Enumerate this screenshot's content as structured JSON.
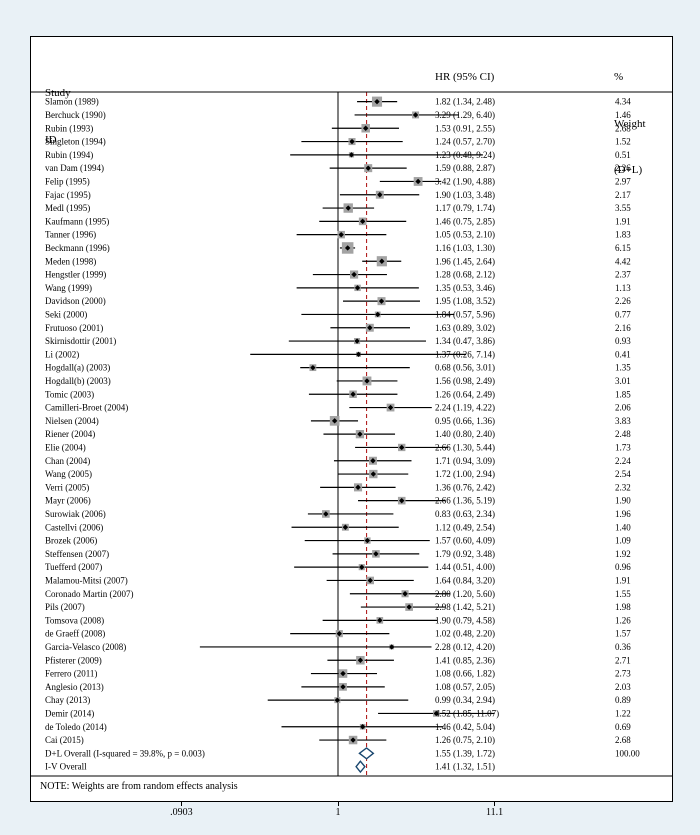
{
  "figure": {
    "header": {
      "col1_line1": "Study",
      "col1_line2": "ID",
      "col2": "HR (95% CI)",
      "col3_line1": "%",
      "col3_line2": "Weight",
      "col3_line3": "(D+L)"
    },
    "note": "NOTE: Weights are from random effects analysis",
    "axis": {
      "ticks": [
        {
          "label": ".0903",
          "value": 0.0903
        },
        {
          "label": "1",
          "value": 1
        },
        {
          "label": "11.1",
          "value": 11.07
        }
      ]
    }
  },
  "colors": {
    "background": "#e9f1f6",
    "plot_background": "#ffffff",
    "box": "#a3a3a3",
    "marker": "#000000",
    "diamond": "#1a476f",
    "pooled_line": "#b22222",
    "line": "#000000"
  },
  "chart_data": {
    "type": "forest",
    "effect_measure": "HR",
    "x_scale": "log",
    "xlim": [
      0.0903,
      11.07
    ],
    "null_line": 1,
    "pooled_estimate": 1.55,
    "studies": [
      {
        "id": "Slamon (1989)",
        "hr": 1.82,
        "lo": 1.34,
        "hi": 2.48,
        "w": 4.34
      },
      {
        "id": "Berchuck (1990)",
        "hr": 3.29,
        "lo": 1.29,
        "hi": 6.4,
        "w": 1.46
      },
      {
        "id": "Rubin (1993)",
        "hr": 1.53,
        "lo": 0.91,
        "hi": 2.55,
        "w": 2.68
      },
      {
        "id": "Singleton (1994)",
        "hr": 1.24,
        "lo": 0.57,
        "hi": 2.7,
        "w": 1.52
      },
      {
        "id": "Rubin (1994)",
        "hr": 1.23,
        "lo": 0.48,
        "hi": 9.24,
        "w": 0.51
      },
      {
        "id": "van Dam (1994)",
        "hr": 1.59,
        "lo": 0.88,
        "hi": 2.87,
        "w": 2.26
      },
      {
        "id": "Felip (1995)",
        "hr": 3.42,
        "lo": 1.9,
        "hi": 4.88,
        "w": 2.97
      },
      {
        "id": "Fajac (1995)",
        "hr": 1.9,
        "lo": 1.03,
        "hi": 3.48,
        "w": 2.17
      },
      {
        "id": "Medl (1995)",
        "hr": 1.17,
        "lo": 0.79,
        "hi": 1.74,
        "w": 3.55
      },
      {
        "id": "Kaufmann (1995)",
        "hr": 1.46,
        "lo": 0.75,
        "hi": 2.85,
        "w": 1.91
      },
      {
        "id": "Tanner (1996)",
        "hr": 1.05,
        "lo": 0.53,
        "hi": 2.1,
        "w": 1.83
      },
      {
        "id": "Beckmann (1996)",
        "hr": 1.16,
        "lo": 1.03,
        "hi": 1.3,
        "w": 6.15
      },
      {
        "id": "Meden (1998)",
        "hr": 1.96,
        "lo": 1.45,
        "hi": 2.64,
        "w": 4.42
      },
      {
        "id": "Hengstler (1999)",
        "hr": 1.28,
        "lo": 0.68,
        "hi": 2.12,
        "w": 2.37
      },
      {
        "id": "Wang (1999)",
        "hr": 1.35,
        "lo": 0.53,
        "hi": 3.46,
        "w": 1.13
      },
      {
        "id": "Davidson (2000)",
        "hr": 1.95,
        "lo": 1.08,
        "hi": 3.52,
        "w": 2.26
      },
      {
        "id": "Seki (2000)",
        "hr": 1.84,
        "lo": 0.57,
        "hi": 5.96,
        "w": 0.77
      },
      {
        "id": "Frutuoso (2001)",
        "hr": 1.63,
        "lo": 0.89,
        "hi": 3.02,
        "w": 2.16
      },
      {
        "id": "Skirnisdottir (2001)",
        "hr": 1.34,
        "lo": 0.47,
        "hi": 3.86,
        "w": 0.93
      },
      {
        "id": "Li (2002)",
        "hr": 1.37,
        "lo": 0.26,
        "hi": 7.14,
        "w": 0.41
      },
      {
        "id": "Hogdall(a) (2003)",
        "hr": 0.68,
        "lo": 0.56,
        "hi": 3.01,
        "w": 1.35
      },
      {
        "id": "Hogdall(b) (2003)",
        "hr": 1.56,
        "lo": 0.98,
        "hi": 2.49,
        "w": 3.01
      },
      {
        "id": "Tomic (2003)",
        "hr": 1.26,
        "lo": 0.64,
        "hi": 2.49,
        "w": 1.85
      },
      {
        "id": "Camilleri-Broet (2004)",
        "hr": 2.24,
        "lo": 1.19,
        "hi": 4.22,
        "w": 2.06
      },
      {
        "id": "Nielsen (2004)",
        "hr": 0.95,
        "lo": 0.66,
        "hi": 1.36,
        "w": 3.83
      },
      {
        "id": "Riener (2004)",
        "hr": 1.4,
        "lo": 0.8,
        "hi": 2.4,
        "w": 2.48
      },
      {
        "id": "Elie (2004)",
        "hr": 2.66,
        "lo": 1.3,
        "hi": 5.44,
        "w": 1.73
      },
      {
        "id": "Chan (2004)",
        "hr": 1.71,
        "lo": 0.94,
        "hi": 3.09,
        "w": 2.24
      },
      {
        "id": "Wang (2005)",
        "hr": 1.72,
        "lo": 1.0,
        "hi": 2.94,
        "w": 2.54
      },
      {
        "id": "Verri (2005)",
        "hr": 1.36,
        "lo": 0.76,
        "hi": 2.42,
        "w": 2.32
      },
      {
        "id": "Mayr (2006)",
        "hr": 2.66,
        "lo": 1.36,
        "hi": 5.19,
        "w": 1.9
      },
      {
        "id": "Surowiak (2006)",
        "hr": 0.83,
        "lo": 0.63,
        "hi": 2.34,
        "w": 1.96
      },
      {
        "id": "Castellvi (2006)",
        "hr": 1.12,
        "lo": 0.49,
        "hi": 2.54,
        "w": 1.4
      },
      {
        "id": "Brozek (2006)",
        "hr": 1.57,
        "lo": 0.6,
        "hi": 4.09,
        "w": 1.09
      },
      {
        "id": "Steffensen (2007)",
        "hr": 1.79,
        "lo": 0.92,
        "hi": 3.48,
        "w": 1.92
      },
      {
        "id": "Tuefferd (2007)",
        "hr": 1.44,
        "lo": 0.51,
        "hi": 4.0,
        "w": 0.96
      },
      {
        "id": "Malamou-Mitsi (2007)",
        "hr": 1.64,
        "lo": 0.84,
        "hi": 3.2,
        "w": 1.91
      },
      {
        "id": "Coronado Martin (2007)",
        "hr": 2.8,
        "lo": 1.2,
        "hi": 5.6,
        "w": 1.55
      },
      {
        "id": "Pils (2007)",
        "hr": 2.98,
        "lo": 1.42,
        "hi": 5.21,
        "w": 1.98
      },
      {
        "id": "Tomsova (2008)",
        "hr": 1.9,
        "lo": 0.79,
        "hi": 4.58,
        "w": 1.26
      },
      {
        "id": "de Graeff (2008)",
        "hr": 1.02,
        "lo": 0.48,
        "hi": 2.2,
        "w": 1.57
      },
      {
        "id": "Garcia-Velasco (2008)",
        "hr": 2.28,
        "lo": 0.12,
        "hi": 4.2,
        "w": 0.36
      },
      {
        "id": "Pfisterer (2009)",
        "hr": 1.41,
        "lo": 0.85,
        "hi": 2.36,
        "w": 2.71
      },
      {
        "id": "Ferrero (2011)",
        "hr": 1.08,
        "lo": 0.66,
        "hi": 1.82,
        "w": 2.73
      },
      {
        "id": "Anglesio (2013)",
        "hr": 1.08,
        "lo": 0.57,
        "hi": 2.05,
        "w": 2.03
      },
      {
        "id": "Chay (2013)",
        "hr": 0.99,
        "lo": 0.34,
        "hi": 2.94,
        "w": 0.89
      },
      {
        "id": "Demir (2014)",
        "hr": 4.52,
        "lo": 1.85,
        "hi": 11.07,
        "w": 1.22
      },
      {
        "id": "de Toledo (2014)",
        "hr": 1.46,
        "lo": 0.42,
        "hi": 5.04,
        "w": 0.69
      },
      {
        "id": "Cai (2015)",
        "hr": 1.26,
        "lo": 0.75,
        "hi": 2.1,
        "w": 2.68
      }
    ],
    "overall": [
      {
        "id": "D+L Overall  (I-squared = 39.8%, p = 0.003)",
        "hr": 1.55,
        "lo": 1.39,
        "hi": 1.72,
        "weight_label": "100.00"
      },
      {
        "id": "I-V Overall",
        "hr": 1.41,
        "lo": 1.32,
        "hi": 1.51,
        "weight_label": ""
      }
    ]
  }
}
